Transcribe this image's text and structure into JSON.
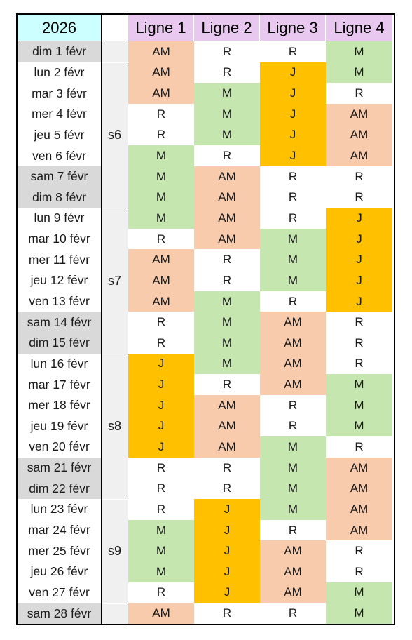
{
  "year": "2026",
  "line_headers": [
    "Ligne 1",
    "Ligne 2",
    "Ligne 3",
    "Ligne 4"
  ],
  "colors": {
    "AM": "#f8cbad",
    "R": "#ffffff",
    "M": "#c6e6b0",
    "J": "#ffc000",
    "header_lines": "#e9c8ef",
    "header_year": "#ccffff",
    "weekend_date": "#d9d9d9",
    "week_label": "#f0f0f0"
  },
  "weeks": [
    {
      "label": "",
      "start": 0,
      "end": 0
    },
    {
      "label": "s6",
      "start": 1,
      "end": 7
    },
    {
      "label": "s7",
      "start": 8,
      "end": 14
    },
    {
      "label": "s8",
      "start": 15,
      "end": 21
    },
    {
      "label": "s9",
      "start": 22,
      "end": 26
    },
    {
      "label": "",
      "start": 27,
      "end": 27
    }
  ],
  "rows": [
    {
      "date": "dim 1 févr",
      "weekend": true,
      "codes": [
        "AM",
        "R",
        "R",
        "M"
      ]
    },
    {
      "date": "lun 2 févr",
      "weekend": false,
      "codes": [
        "AM",
        "R",
        "J",
        "M"
      ]
    },
    {
      "date": "mar 3 févr",
      "weekend": false,
      "codes": [
        "AM",
        "M",
        "J",
        "R"
      ]
    },
    {
      "date": "mer 4 févr",
      "weekend": false,
      "codes": [
        "R",
        "M",
        "J",
        "AM"
      ]
    },
    {
      "date": "jeu 5 févr",
      "weekend": false,
      "codes": [
        "R",
        "M",
        "J",
        "AM"
      ]
    },
    {
      "date": "ven 6 févr",
      "weekend": false,
      "codes": [
        "M",
        "R",
        "J",
        "AM"
      ]
    },
    {
      "date": "sam 7 févr",
      "weekend": true,
      "codes": [
        "M",
        "AM",
        "R",
        "R"
      ]
    },
    {
      "date": "dim 8 févr",
      "weekend": true,
      "codes": [
        "M",
        "AM",
        "R",
        "R"
      ]
    },
    {
      "date": "lun 9 févr",
      "weekend": false,
      "codes": [
        "M",
        "AM",
        "R",
        "J"
      ]
    },
    {
      "date": "mar 10 févr",
      "weekend": false,
      "codes": [
        "R",
        "AM",
        "M",
        "J"
      ]
    },
    {
      "date": "mer 11 févr",
      "weekend": false,
      "codes": [
        "AM",
        "R",
        "M",
        "J"
      ]
    },
    {
      "date": "jeu 12 févr",
      "weekend": false,
      "codes": [
        "AM",
        "R",
        "M",
        "J"
      ]
    },
    {
      "date": "ven 13 févr",
      "weekend": false,
      "codes": [
        "AM",
        "M",
        "R",
        "J"
      ]
    },
    {
      "date": "sam 14 févr",
      "weekend": true,
      "codes": [
        "R",
        "M",
        "AM",
        "R"
      ]
    },
    {
      "date": "dim 15 févr",
      "weekend": true,
      "codes": [
        "R",
        "M",
        "AM",
        "R"
      ]
    },
    {
      "date": "lun 16 févr",
      "weekend": false,
      "codes": [
        "J",
        "M",
        "AM",
        "R"
      ]
    },
    {
      "date": "mar 17 févr",
      "weekend": false,
      "codes": [
        "J",
        "R",
        "AM",
        "M"
      ]
    },
    {
      "date": "mer 18 févr",
      "weekend": false,
      "codes": [
        "J",
        "AM",
        "R",
        "M"
      ]
    },
    {
      "date": "jeu 19 févr",
      "weekend": false,
      "codes": [
        "J",
        "AM",
        "R",
        "M"
      ]
    },
    {
      "date": "ven 20 févr",
      "weekend": false,
      "codes": [
        "J",
        "AM",
        "M",
        "R"
      ]
    },
    {
      "date": "sam 21 févr",
      "weekend": true,
      "codes": [
        "R",
        "R",
        "M",
        "AM"
      ]
    },
    {
      "date": "dim 22 févr",
      "weekend": true,
      "codes": [
        "R",
        "R",
        "M",
        "AM"
      ]
    },
    {
      "date": "lun 23 févr",
      "weekend": false,
      "codes": [
        "R",
        "J",
        "M",
        "AM"
      ]
    },
    {
      "date": "mar 24 févr",
      "weekend": false,
      "codes": [
        "M",
        "J",
        "R",
        "AM"
      ]
    },
    {
      "date": "mer 25 févr",
      "weekend": false,
      "codes": [
        "M",
        "J",
        "AM",
        "R"
      ]
    },
    {
      "date": "jeu 26 févr",
      "weekend": false,
      "codes": [
        "M",
        "J",
        "AM",
        "R"
      ]
    },
    {
      "date": "ven 27 févr",
      "weekend": false,
      "codes": [
        "R",
        "J",
        "AM",
        "M"
      ]
    },
    {
      "date": "sam 28 févr",
      "weekend": true,
      "codes": [
        "AM",
        "R",
        "R",
        "M"
      ]
    }
  ]
}
